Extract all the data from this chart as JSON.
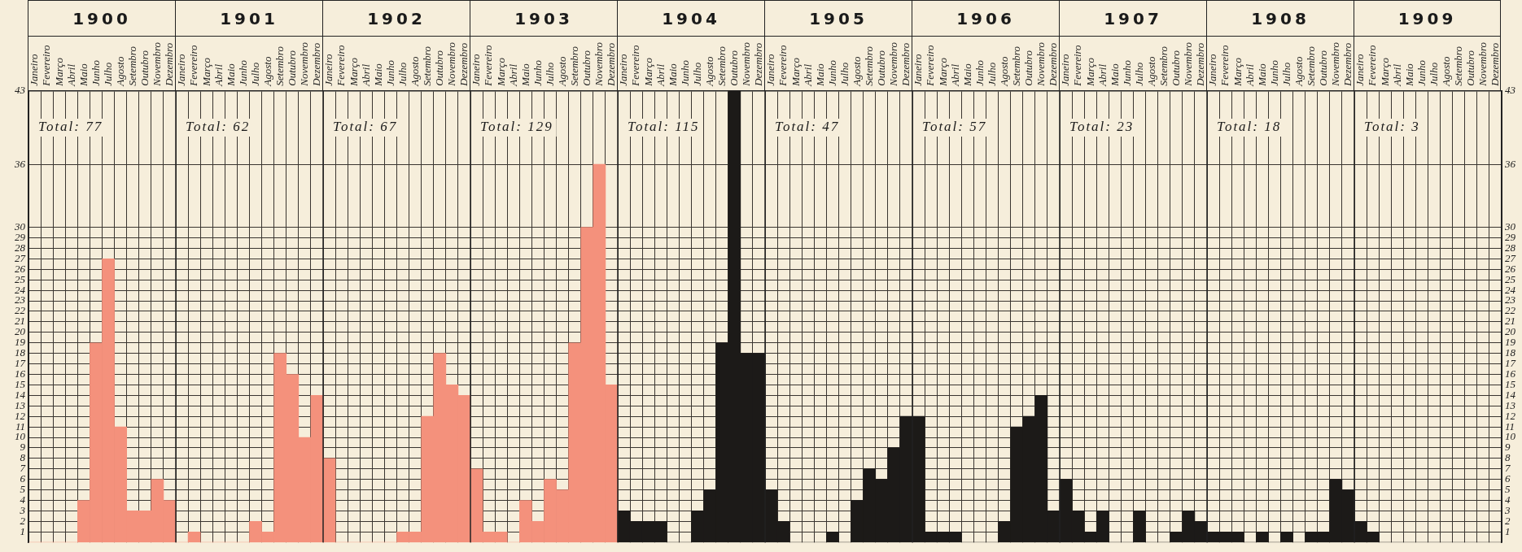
{
  "chart_data": {
    "type": "bar",
    "categories": [
      "Janeiro",
      "Fevereiro",
      "Março",
      "Abril",
      "Maio",
      "Junho",
      "Julho",
      "Agosto",
      "Setembro",
      "Outubro",
      "Novembro",
      "Dezembro",
      "Janeiro",
      "Fevereiro",
      "Março",
      "Abril",
      "Maio",
      "Junho",
      "Julho",
      "Agosto",
      "Setembro",
      "Outubro",
      "Novembro",
      "Dezembro",
      "Janeiro",
      "Fevereiro",
      "Março",
      "Abril",
      "Maio",
      "Junho",
      "Julho",
      "Agosto",
      "Setembro",
      "Outubro",
      "Novembro",
      "Dezembro",
      "Janeiro",
      "Fevereiro",
      "Março",
      "Abril",
      "Maio",
      "Junho",
      "Julho",
      "Agosto",
      "Setembro",
      "Outubro",
      "Novembro",
      "Dezembro",
      "Janeiro",
      "Fevereiro",
      "Março",
      "Abril",
      "Maio",
      "Junho",
      "Julho",
      "Agosto",
      "Setembro",
      "Outubro",
      "Novembro",
      "Dezembro",
      "Janeiro",
      "Fevereiro",
      "Março",
      "Abril",
      "Maio",
      "Junho",
      "Julho",
      "Agosto",
      "Setembro",
      "Outubro",
      "Novembro",
      "Dezembro",
      "Janeiro",
      "Fevereiro",
      "Março",
      "Abril",
      "Maio",
      "Junho",
      "Julho",
      "Agosto",
      "Setembro",
      "Outubro",
      "Novembro",
      "Dezembro",
      "Janeiro",
      "Fevereiro",
      "Março",
      "Abril",
      "Maio",
      "Junho",
      "Julho",
      "Agosto",
      "Setembro",
      "Outubro",
      "Novembro",
      "Dezembro",
      "Janeiro",
      "Fevereiro",
      "Março",
      "Abril",
      "Maio",
      "Junho",
      "Julho",
      "Agosto",
      "Setembro",
      "Outubro",
      "Novembro",
      "Dezembro",
      "Janeiro",
      "Fevereiro",
      "Março",
      "Abril",
      "Maio",
      "Junho",
      "Julho",
      "Agosto",
      "Setembro",
      "Outubro",
      "Novembro",
      "Dezembro"
    ],
    "values": [
      0,
      0,
      0,
      0,
      4,
      19,
      27,
      11,
      3,
      3,
      6,
      4,
      0,
      1,
      0,
      0,
      0,
      0,
      2,
      1,
      18,
      16,
      10,
      14,
      8,
      0,
      0,
      0,
      0,
      0,
      1,
      1,
      12,
      18,
      15,
      14,
      7,
      1,
      1,
      0,
      4,
      2,
      6,
      5,
      19,
      30,
      36,
      15,
      3,
      2,
      2,
      2,
      0,
      0,
      3,
      5,
      19,
      43,
      18,
      18,
      5,
      2,
      0,
      0,
      0,
      1,
      0,
      4,
      7,
      6,
      9,
      12,
      12,
      1,
      1,
      1,
      0,
      0,
      0,
      2,
      11,
      12,
      14,
      3,
      6,
      3,
      1,
      3,
      0,
      0,
      3,
      0,
      0,
      1,
      3,
      2,
      1,
      1,
      1,
      0,
      1,
      0,
      1,
      0,
      1,
      1,
      6,
      5,
      2,
      1,
      0,
      0,
      0,
      0,
      0,
      0,
      0,
      0,
      0,
      0
    ],
    "colors": [
      "#f4917c",
      "#f4917c",
      "#f4917c",
      "#f4917c",
      "#f4917c",
      "#f4917c",
      "#f4917c",
      "#f4917c",
      "#f4917c",
      "#f4917c",
      "#f4917c",
      "#f4917c",
      "#f4917c",
      "#f4917c",
      "#f4917c",
      "#f4917c",
      "#f4917c",
      "#f4917c",
      "#f4917c",
      "#f4917c",
      "#f4917c",
      "#f4917c",
      "#f4917c",
      "#f4917c",
      "#f4917c",
      "#f4917c",
      "#f4917c",
      "#f4917c",
      "#f4917c",
      "#f4917c",
      "#f4917c",
      "#f4917c",
      "#f4917c",
      "#f4917c",
      "#f4917c",
      "#f4917c",
      "#f4917c",
      "#f4917c",
      "#f4917c",
      "#f4917c",
      "#f4917c",
      "#f4917c",
      "#f4917c",
      "#f4917c",
      "#f4917c",
      "#f4917c",
      "#f4917c",
      "#f4917c",
      "#1c1a18",
      "#1c1a18",
      "#1c1a18",
      "#1c1a18",
      "#1c1a18",
      "#1c1a18",
      "#1c1a18",
      "#1c1a18",
      "#1c1a18",
      "#1c1a18",
      "#1c1a18",
      "#1c1a18",
      "#1c1a18",
      "#1c1a18",
      "#1c1a18",
      "#1c1a18",
      "#1c1a18",
      "#1c1a18",
      "#1c1a18",
      "#1c1a18",
      "#1c1a18",
      "#1c1a18",
      "#1c1a18",
      "#1c1a18",
      "#1c1a18",
      "#1c1a18",
      "#1c1a18",
      "#1c1a18",
      "#1c1a18",
      "#1c1a18",
      "#1c1a18",
      "#1c1a18",
      "#1c1a18",
      "#1c1a18",
      "#1c1a18",
      "#1c1a18",
      "#1c1a18",
      "#1c1a18",
      "#1c1a18",
      "#1c1a18",
      "#1c1a18",
      "#1c1a18",
      "#1c1a18",
      "#1c1a18",
      "#1c1a18",
      "#1c1a18",
      "#1c1a18",
      "#1c1a18",
      "#1c1a18",
      "#1c1a18",
      "#1c1a18",
      "#1c1a18",
      "#1c1a18",
      "#1c1a18",
      "#1c1a18",
      "#1c1a18",
      "#1c1a18",
      "#1c1a18",
      "#1c1a18",
      "#1c1a18",
      "#1c1a18",
      "#1c1a18",
      "#1c1a18",
      "#1c1a18",
      "#1c1a18",
      "#1c1a18",
      "#1c1a18",
      "#1c1a18",
      "#1c1a18",
      "#1c1a18",
      "#1c1a18",
      "#1c1a18"
    ],
    "ylim": [
      0,
      43
    ],
    "yticks": [
      1,
      2,
      3,
      4,
      5,
      6,
      7,
      8,
      9,
      10,
      11,
      12,
      13,
      14,
      15,
      16,
      17,
      18,
      19,
      20,
      21,
      22,
      23,
      24,
      25,
      26,
      27,
      28,
      29,
      30,
      36,
      43
    ],
    "y2lim": [
      0,
      43
    ],
    "y2ticks": [
      1,
      2,
      3,
      4,
      5,
      6,
      7,
      8,
      9,
      10,
      11,
      12,
      13,
      14,
      15,
      16,
      17,
      18,
      19,
      20,
      21,
      22,
      23,
      24,
      25,
      26,
      27,
      28,
      29,
      30,
      36,
      43
    ],
    "grid": true,
    "annotations": [
      "1900",
      "Total: 77",
      "1901",
      "Total: 62",
      "1902",
      "Total: 67",
      "1903",
      "Total: 129",
      "1904",
      "Total: 115",
      "1905",
      "Total: 47",
      "1906",
      "Total: 57",
      "1907",
      "Total: 23",
      "1908",
      "Total: 18",
      "1909",
      "Total: 3"
    ]
  }
}
